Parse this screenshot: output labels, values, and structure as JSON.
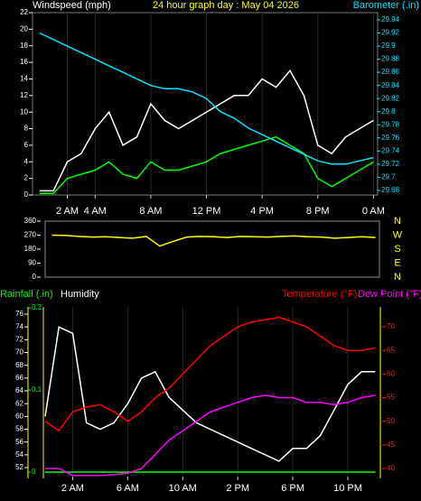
{
  "chart_data": [
    {
      "type": "line",
      "title": "24 hour graph day : May 04 2026",
      "ylabel": "Windspeed (mph)",
      "y2label": "Barometer (.in)",
      "x": [
        0,
        1,
        2,
        3,
        4,
        5,
        6,
        7,
        8,
        9,
        10,
        11,
        12,
        13,
        14,
        15,
        16,
        17,
        18,
        19,
        20,
        21,
        22,
        23,
        24
      ],
      "xlim": [
        -0.5,
        24.3
      ],
      "xticks": [
        {
          "value": 2,
          "label": "2 AM"
        },
        {
          "value": 4,
          "label": "4 AM"
        },
        {
          "value": 8,
          "label": "8 AM"
        },
        {
          "value": 12,
          "label": "12 PM"
        },
        {
          "value": 16,
          "label": "4 PM"
        },
        {
          "value": 20,
          "label": "8 PM"
        },
        {
          "value": 24,
          "label": "0 AM"
        }
      ],
      "ylim": [
        0,
        22
      ],
      "yticks": [
        0,
        2,
        4,
        6,
        8,
        10,
        12,
        14,
        16,
        18,
        20,
        22
      ],
      "y2lim": [
        29.673,
        29.951
      ],
      "y2ticks": [
        29.68,
        29.7,
        29.72,
        29.74,
        29.76,
        29.78,
        29.8,
        29.82,
        29.84,
        29.86,
        29.88,
        29.9,
        29.92,
        29.94
      ],
      "grid": true,
      "series": [
        {
          "color": "#ffffff",
          "values": [
            0.5,
            0.5,
            4,
            5,
            8,
            10,
            6,
            7,
            11,
            9,
            8,
            9,
            10,
            11,
            12,
            12,
            14,
            13,
            15,
            12,
            6,
            5,
            7,
            8,
            9
          ]
        },
        {
          "color": "#00ff00",
          "values": [
            0.2,
            0.2,
            2,
            2.5,
            3,
            4,
            2.5,
            2,
            4,
            3,
            3,
            3.5,
            4,
            5,
            5.5,
            6,
            6.5,
            7,
            6,
            5,
            2,
            1,
            2,
            3,
            4
          ]
        },
        {
          "color": "#00e5ff",
          "axis": "y2",
          "values": [
            29.92,
            29.91,
            29.9,
            29.89,
            29.88,
            29.87,
            29.86,
            29.85,
            29.84,
            29.835,
            29.835,
            29.83,
            29.82,
            29.8,
            29.79,
            29.775,
            29.765,
            29.755,
            29.745,
            29.735,
            29.725,
            29.72,
            29.72,
            29.725,
            29.73
          ]
        }
      ]
    },
    {
      "type": "line",
      "x": [
        0,
        1,
        2,
        3,
        4,
        5,
        6,
        7,
        8,
        9,
        10,
        11,
        12,
        13,
        14,
        15,
        16,
        17,
        18,
        19,
        20,
        21,
        22,
        23,
        24
      ],
      "xlim": [
        -0.5,
        24.3
      ],
      "ylim": [
        0,
        360
      ],
      "yticks": [
        0,
        90,
        180,
        270,
        360
      ],
      "compass": [
        "N",
        "E",
        "S",
        "W",
        "N"
      ],
      "series": [
        {
          "color": "#ffff00",
          "values": [
            270,
            268,
            262,
            258,
            260,
            255,
            250,
            262,
            200,
            230,
            258,
            262,
            260,
            255,
            262,
            260,
            258,
            262,
            265,
            260,
            258,
            250,
            255,
            260,
            255
          ]
        }
      ]
    },
    {
      "type": "line",
      "x": [
        0,
        1,
        2,
        3,
        4,
        5,
        6,
        7,
        8,
        9,
        10,
        11,
        12,
        13,
        14,
        15,
        16,
        17,
        18,
        19,
        20,
        21,
        22,
        23,
        24
      ],
      "xlim": [
        0,
        24.3
      ],
      "xticks": [
        {
          "value": 2,
          "label": "2 AM"
        },
        {
          "value": 6,
          "label": "6 AM"
        },
        {
          "value": 10,
          "label": "10 AM"
        },
        {
          "value": 14,
          "label": "2 PM"
        },
        {
          "value": 18,
          "label": "6 PM"
        },
        {
          "value": 22,
          "label": "10 PM"
        }
      ],
      "ylim": [
        50.59,
        77.13
      ],
      "yticks": [
        52,
        54,
        56,
        58,
        60,
        62,
        64,
        66,
        68,
        70,
        72,
        74,
        76
      ],
      "y2lim": [
        38.28,
        74.2
      ],
      "y2ticks": [
        40,
        45,
        50,
        55,
        60,
        65,
        70
      ],
      "y3lim": [
        -0.0055,
        0.2011
      ],
      "y3ticks": [
        0,
        0.1,
        0.2
      ],
      "grid": true,
      "series": [
        {
          "name": "Rainfall (.in)",
          "color": "#00ff00",
          "axis": "y3",
          "values": [
            0,
            0,
            0,
            0,
            0,
            0,
            0,
            0,
            0,
            0,
            0,
            0,
            0,
            0,
            0,
            0,
            0,
            0,
            0,
            0,
            0,
            0,
            0,
            0,
            0
          ]
        },
        {
          "name": "Humidity",
          "color": "#ffffff",
          "values": [
            60,
            74,
            73,
            59,
            58,
            59,
            62,
            66,
            67,
            63,
            61,
            59,
            58,
            57,
            56,
            55,
            54,
            53,
            55,
            55,
            57,
            61,
            65,
            67,
            67
          ]
        },
        {
          "name": "Temperature (°F)",
          "color": "#ff0000",
          "axis": "y2",
          "values": [
            50,
            48,
            52,
            53,
            53.5,
            52,
            50,
            52,
            55,
            57,
            60,
            63,
            66,
            68,
            70,
            71,
            71.5,
            72,
            71,
            70,
            68,
            66,
            65,
            65,
            65.5
          ]
        },
        {
          "name": "Dew Point (°F)",
          "color": "#ff00ff",
          "axis": "y2",
          "values": [
            40,
            40,
            38.5,
            38.5,
            38.5,
            38.7,
            39,
            40,
            43,
            46,
            48,
            50,
            52,
            53,
            54,
            55,
            55.5,
            55,
            55,
            54,
            54,
            53.5,
            54,
            55,
            55.5
          ]
        }
      ]
    }
  ]
}
